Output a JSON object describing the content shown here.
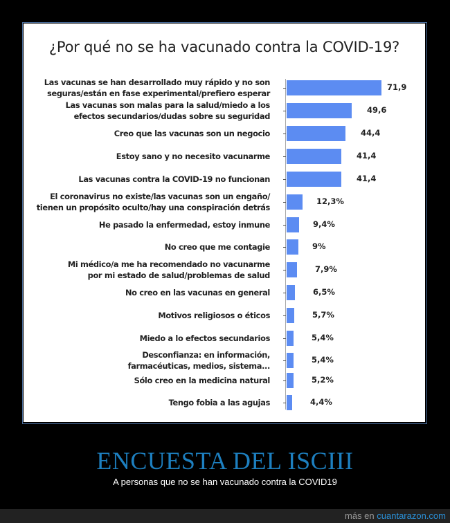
{
  "chart_data": {
    "type": "bar",
    "orientation": "horizontal",
    "title": "¿Por qué no se ha vacunado contra la COVID-19?",
    "xlabel": "",
    "ylabel": "",
    "grid": false,
    "legend": null,
    "categories": [
      "Las vacunas se han desarrollado muy rápido y no son seguras/están en fase experimental/prefiero esperar",
      "Las vacunas son malas para la salud/miedo a los efectos secundarios/dudas sobre su seguridad",
      "Creo que las vacunas son un negocio",
      "Estoy sano y no necesito vacunarme",
      "Las vacunas contra la COVID-19 no funcionan",
      "El coronavirus no existe/las vacunas son un engaño/ tienen un propósito oculto/hay una conspiración detrás",
      "He pasado la enfermedad, estoy inmune",
      "No creo que me contagie",
      "Mi médico/a me ha recomendado no vacunarme por mi estado de salud/problemas de salud",
      "No creo en las vacunas en general",
      "Motivos religiosos o éticos",
      "Miedo a lo efectos secundarios",
      "Desconfianza: en información, farmacéuticas, medios, sistema...",
      "Sólo creo en la medicina natural",
      "Tengo fobia a las agujas"
    ],
    "values": [
      71.9,
      49.6,
      44.4,
      41.4,
      41.4,
      12.3,
      9.4,
      9,
      7.9,
      6.5,
      5.7,
      5.4,
      5.4,
      5.2,
      4.4
    ],
    "value_labels": [
      "71,9",
      "49,6",
      "44,4",
      "41,4",
      "41,4",
      "12,3%",
      "9,4%",
      "9%",
      "7,9%",
      "6,5%",
      "5,7%",
      "5,4%",
      "5,4%",
      "5,2%",
      "4,4%"
    ],
    "bar_color": "#5c8cf2"
  },
  "chart": {
    "title": "¿Por qué no se ha vacunado contra la COVID-19?",
    "rows": [
      {
        "l1": "Las vacunas se han desarrollado muy rápido y no son",
        "l2": "seguras/están en fase experimental/prefiero esperar",
        "value": "71,9"
      },
      {
        "l1": "Las vacunas son malas para la salud/miedo a los",
        "l2": "efectos secundarios/dudas sobre su seguridad",
        "value": "49,6"
      },
      {
        "l1": "Creo que las vacunas son un negocio",
        "l2": "",
        "value": "44,4"
      },
      {
        "l1": "Estoy sano y no necesito vacunarme",
        "l2": "",
        "value": "41,4"
      },
      {
        "l1": "Las vacunas contra la COVID-19 no funcionan",
        "l2": "",
        "value": "41,4"
      },
      {
        "l1": "El coronavirus no existe/las vacunas son un engaño/",
        "l2": "tienen un propósito oculto/hay una conspiración detrás",
        "value": "12,3%"
      },
      {
        "l1": "He pasado la enfermedad, estoy inmune",
        "l2": "",
        "value": "9,4%"
      },
      {
        "l1": "No creo que me contagie",
        "l2": "",
        "value": "9%"
      },
      {
        "l1": "Mi médico/a me ha recomendado no vacunarme",
        "l2": "por mi estado de salud/problemas de salud",
        "value": "7,9%"
      },
      {
        "l1": "No creo en las vacunas en general",
        "l2": "",
        "value": "6,5%"
      },
      {
        "l1": "Motivos religiosos o éticos",
        "l2": "",
        "value": "5,7%"
      },
      {
        "l1": "Miedo a lo efectos secundarios",
        "l2": "",
        "value": "5,4%"
      },
      {
        "l1": "Desconfianza: en información,",
        "l2": "farmacéuticas, medios, sistema...",
        "value": "5,4%"
      },
      {
        "l1": "Sólo creo en la medicina natural",
        "l2": "",
        "value": "5,2%"
      },
      {
        "l1": "Tengo fobia a las agujas",
        "l2": "",
        "value": "4,4%"
      }
    ]
  },
  "post": {
    "title": "ENCUESTA DEL ISCIII",
    "subtitle": "A personas que no se han vacunado contra la COVID19"
  },
  "footer": {
    "prefix": "más en ",
    "link": "cuantarazon.com"
  }
}
